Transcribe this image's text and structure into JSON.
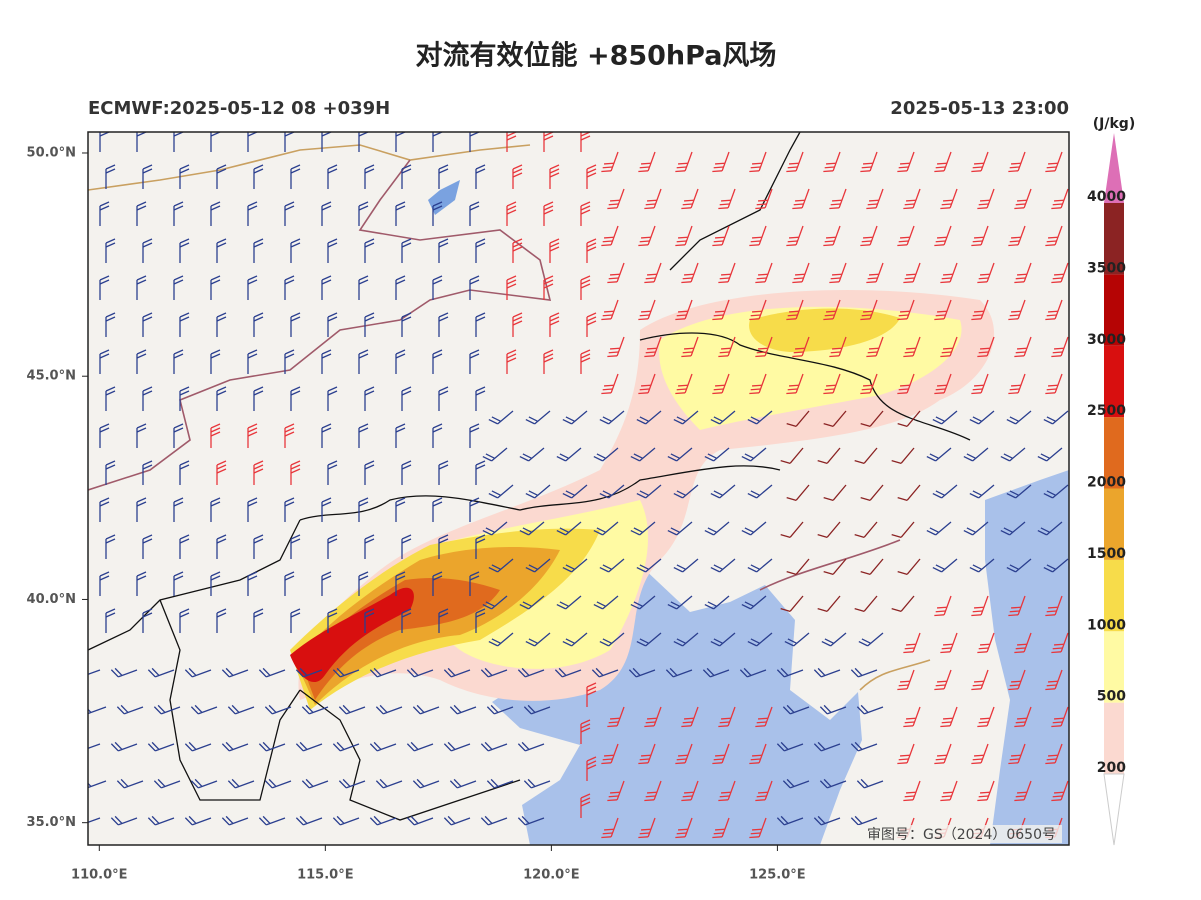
{
  "title": "对流有效位能 +850hPa风场",
  "model_run": "ECMWF:2025-05-12 08 +039H",
  "valid_time": "2025-05-13 23:00",
  "map": {
    "xlim": [
      109.75,
      131.45
    ],
    "ylim": [
      34.5,
      50.47
    ],
    "xticks": [
      {
        "value": 110,
        "label": "110.0°E"
      },
      {
        "value": 115,
        "label": "115.0°E"
      },
      {
        "value": 120,
        "label": "120.0°E"
      },
      {
        "value": 125,
        "label": "125.0°E"
      }
    ],
    "yticks": [
      {
        "value": 35,
        "label": "35.0°N"
      },
      {
        "value": 40,
        "label": "40.0°N"
      },
      {
        "value": 45,
        "label": "45.0°N"
      },
      {
        "value": 50,
        "label": "50.0°N"
      }
    ],
    "approval_number": "审图号：GS（2024）0650号"
  },
  "colorbar": {
    "unit": "(J/kg)",
    "levels": [
      200,
      500,
      1000,
      1500,
      2000,
      2500,
      3000,
      3500,
      4000
    ],
    "colors": [
      "#fbd9d0",
      "#fffaa3",
      "#f7dc4a",
      "#eba52c",
      "#e06a1e",
      "#d80f0f",
      "#b50404",
      "#8b2323",
      "#dd6fb6"
    ]
  }
}
